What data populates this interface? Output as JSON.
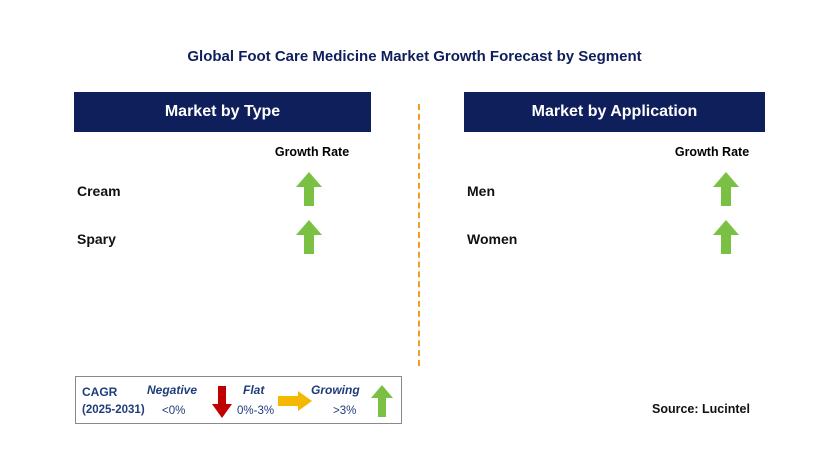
{
  "title": "Global Foot Care Medicine Market Growth Forecast by Segment",
  "left_panel": {
    "header": "Market by Type",
    "column_header": "Growth Rate",
    "rows": [
      {
        "label": "Cream",
        "trend": "growing"
      },
      {
        "label": "Spary",
        "trend": "growing"
      }
    ]
  },
  "right_panel": {
    "header": "Market by Application",
    "column_header": "Growth Rate",
    "rows": [
      {
        "label": "Men",
        "trend": "growing"
      },
      {
        "label": "Women",
        "trend": "growing"
      }
    ]
  },
  "legend": {
    "cagr_label": "CAGR",
    "period": "(2025-2031)",
    "negative_label": "Negative",
    "negative_range": "<0%",
    "flat_label": "Flat",
    "flat_range": "0%-3%",
    "growing_label": "Growing",
    "growing_range": ">3%"
  },
  "source": "Source: Lucintel",
  "colors": {
    "header_bg": "#0f1f5c",
    "title_text": "#0f1f5c",
    "growing_arrow": "#7ac143",
    "negative_arrow": "#c00000",
    "flat_arrow": "#f5b800",
    "divider": "#f0a020",
    "legend_italic": "#1f3d7a"
  }
}
